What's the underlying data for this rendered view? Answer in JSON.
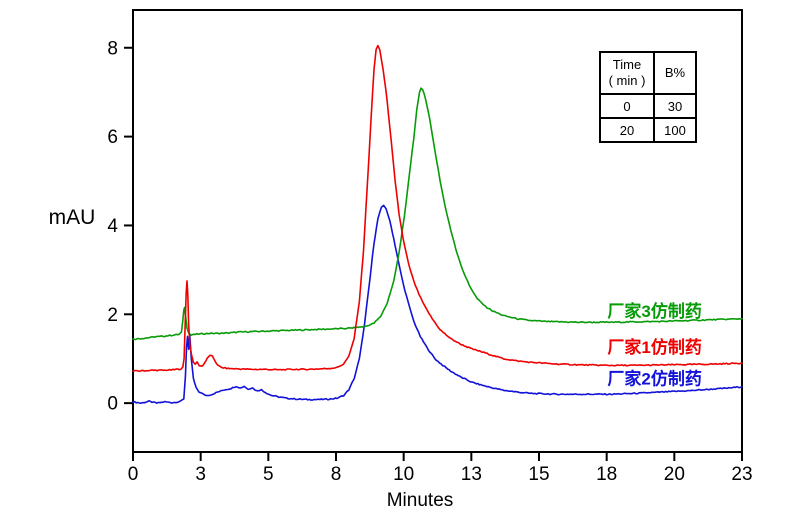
{
  "axis_labels": {
    "y": "mAU",
    "x": "Minutes"
  },
  "inset_table": {
    "header": {
      "time": "Time",
      "time_unit": "( min )",
      "b": "B%"
    },
    "rows": [
      [
        "0",
        "30"
      ],
      [
        "20",
        "100"
      ]
    ]
  },
  "chart_data": {
    "type": "line",
    "title": "",
    "xlabel": "Minutes",
    "ylabel": "mAU",
    "x_range": [
      0,
      23
    ],
    "y_range": [
      -1.1,
      8.85
    ],
    "grid": false,
    "legend_position": "inline-right-labels",
    "x_ticks": {
      "positions": [
        0,
        2.556,
        5.111,
        7.667,
        10.222,
        12.778,
        15.333,
        17.889,
        20.444,
        23
      ],
      "labels": [
        "0",
        "3",
        "5",
        "8",
        "10",
        "13",
        "15",
        "18",
        "20",
        "23"
      ]
    },
    "y_ticks": {
      "positions": [
        0,
        2,
        4,
        6,
        8
      ],
      "labels": [
        "0",
        "2",
        "4",
        "6",
        "8"
      ]
    },
    "series": [
      {
        "name": "厂家2仿制药",
        "color": "#1212d8",
        "peak": {
          "retention_min": 9.47,
          "height_mau": 4.45
        },
        "points": [
          [
            0,
            0.03
          ],
          [
            0.3,
            0.0
          ],
          [
            0.6,
            0.04
          ],
          [
            0.9,
            0.0
          ],
          [
            1.2,
            0.03
          ],
          [
            1.5,
            0.01
          ],
          [
            1.8,
            0.04
          ],
          [
            1.92,
            0.1
          ],
          [
            1.98,
            0.6
          ],
          [
            2.02,
            1.25
          ],
          [
            2.06,
            1.5
          ],
          [
            2.1,
            1.2
          ],
          [
            2.14,
            1.55
          ],
          [
            2.2,
            1.0
          ],
          [
            2.28,
            0.55
          ],
          [
            2.38,
            0.35
          ],
          [
            2.5,
            0.25
          ],
          [
            2.65,
            0.2
          ],
          [
            2.8,
            0.17
          ],
          [
            3.0,
            0.2
          ],
          [
            3.2,
            0.25
          ],
          [
            3.45,
            0.3
          ],
          [
            3.7,
            0.33
          ],
          [
            3.9,
            0.38
          ],
          [
            4.05,
            0.34
          ],
          [
            4.2,
            0.38
          ],
          [
            4.35,
            0.31
          ],
          [
            4.5,
            0.35
          ],
          [
            4.65,
            0.28
          ],
          [
            4.85,
            0.3
          ],
          [
            5.0,
            0.24
          ],
          [
            5.2,
            0.18
          ],
          [
            5.5,
            0.14
          ],
          [
            5.8,
            0.11
          ],
          [
            6.2,
            0.09
          ],
          [
            6.6,
            0.08
          ],
          [
            7.0,
            0.08
          ],
          [
            7.4,
            0.09
          ],
          [
            7.7,
            0.11
          ],
          [
            7.95,
            0.17
          ],
          [
            8.15,
            0.3
          ],
          [
            8.35,
            0.55
          ],
          [
            8.55,
            1.0
          ],
          [
            8.75,
            1.8
          ],
          [
            8.95,
            2.8
          ],
          [
            9.1,
            3.6
          ],
          [
            9.25,
            4.15
          ],
          [
            9.38,
            4.4
          ],
          [
            9.47,
            4.45
          ],
          [
            9.56,
            4.38
          ],
          [
            9.7,
            4.1
          ],
          [
            9.85,
            3.7
          ],
          [
            10.0,
            3.25
          ],
          [
            10.2,
            2.7
          ],
          [
            10.4,
            2.25
          ],
          [
            10.6,
            1.85
          ],
          [
            10.85,
            1.5
          ],
          [
            11.1,
            1.25
          ],
          [
            11.4,
            1.0
          ],
          [
            11.7,
            0.85
          ],
          [
            12.0,
            0.72
          ],
          [
            12.4,
            0.58
          ],
          [
            12.8,
            0.47
          ],
          [
            13.2,
            0.4
          ],
          [
            13.6,
            0.34
          ],
          [
            14.0,
            0.29
          ],
          [
            14.5,
            0.25
          ],
          [
            15.0,
            0.22
          ],
          [
            15.5,
            0.21
          ],
          [
            16.0,
            0.2
          ],
          [
            17.0,
            0.2
          ],
          [
            18.0,
            0.2
          ],
          [
            19.0,
            0.22
          ],
          [
            20.0,
            0.25
          ],
          [
            21.0,
            0.28
          ],
          [
            22.0,
            0.32
          ],
          [
            22.5,
            0.34
          ],
          [
            23,
            0.37
          ]
        ]
      },
      {
        "name": "厂家3仿制药",
        "color": "#089b08",
        "peak": {
          "retention_min": 10.88,
          "height_mau": 7.1
        },
        "points": [
          [
            0,
            1.44
          ],
          [
            0.4,
            1.46
          ],
          [
            0.8,
            1.49
          ],
          [
            1.2,
            1.51
          ],
          [
            1.5,
            1.53
          ],
          [
            1.75,
            1.55
          ],
          [
            1.83,
            1.6
          ],
          [
            1.88,
            1.85
          ],
          [
            1.92,
            2.1
          ],
          [
            1.95,
            2.15
          ],
          [
            1.99,
            1.95
          ],
          [
            2.04,
            1.7
          ],
          [
            2.1,
            1.58
          ],
          [
            2.2,
            1.53
          ],
          [
            2.35,
            1.55
          ],
          [
            2.6,
            1.56
          ],
          [
            2.9,
            1.57
          ],
          [
            3.2,
            1.57
          ],
          [
            3.6,
            1.58
          ],
          [
            4.0,
            1.6
          ],
          [
            4.5,
            1.61
          ],
          [
            5.0,
            1.62
          ],
          [
            5.5,
            1.63
          ],
          [
            6.0,
            1.64
          ],
          [
            6.5,
            1.65
          ],
          [
            7.0,
            1.66
          ],
          [
            7.5,
            1.67
          ],
          [
            8.0,
            1.68
          ],
          [
            8.4,
            1.7
          ],
          [
            8.8,
            1.73
          ],
          [
            9.1,
            1.8
          ],
          [
            9.35,
            1.95
          ],
          [
            9.6,
            2.25
          ],
          [
            9.85,
            2.75
          ],
          [
            10.05,
            3.4
          ],
          [
            10.25,
            4.2
          ],
          [
            10.45,
            5.2
          ],
          [
            10.6,
            5.95
          ],
          [
            10.72,
            6.6
          ],
          [
            10.82,
            7.0
          ],
          [
            10.88,
            7.1
          ],
          [
            10.95,
            7.05
          ],
          [
            11.05,
            6.85
          ],
          [
            11.2,
            6.4
          ],
          [
            11.4,
            5.7
          ],
          [
            11.6,
            5.0
          ],
          [
            11.8,
            4.4
          ],
          [
            12.0,
            3.9
          ],
          [
            12.2,
            3.45
          ],
          [
            12.45,
            3.0
          ],
          [
            12.7,
            2.65
          ],
          [
            13.0,
            2.35
          ],
          [
            13.3,
            2.18
          ],
          [
            13.6,
            2.07
          ],
          [
            14.0,
            1.97
          ],
          [
            14.5,
            1.9
          ],
          [
            15.0,
            1.86
          ],
          [
            15.5,
            1.84
          ],
          [
            16.0,
            1.83
          ],
          [
            17.0,
            1.82
          ],
          [
            18.0,
            1.82
          ],
          [
            19.0,
            1.83
          ],
          [
            20.0,
            1.84
          ],
          [
            21.0,
            1.86
          ],
          [
            22.0,
            1.88
          ],
          [
            23,
            1.9
          ]
        ]
      },
      {
        "name": "厂家1仿制药",
        "color": "#ee0000",
        "peak": {
          "retention_min": 9.25,
          "height_mau": 8.05
        },
        "points": [
          [
            0,
            0.72
          ],
          [
            0.4,
            0.73
          ],
          [
            0.8,
            0.74
          ],
          [
            1.2,
            0.74
          ],
          [
            1.5,
            0.75
          ],
          [
            1.8,
            0.77
          ],
          [
            1.88,
            0.8
          ],
          [
            1.93,
            1.0
          ],
          [
            1.97,
            1.8
          ],
          [
            2.01,
            2.5
          ],
          [
            2.04,
            2.75
          ],
          [
            2.07,
            2.45
          ],
          [
            2.1,
            1.8
          ],
          [
            2.15,
            1.3
          ],
          [
            2.22,
            1.05
          ],
          [
            2.28,
            0.92
          ],
          [
            2.35,
            0.88
          ],
          [
            2.42,
            0.92
          ],
          [
            2.5,
            0.85
          ],
          [
            2.6,
            0.83
          ],
          [
            2.7,
            0.9
          ],
          [
            2.8,
            1.0
          ],
          [
            2.9,
            1.08
          ],
          [
            3.0,
            1.05
          ],
          [
            3.1,
            0.95
          ],
          [
            3.2,
            0.85
          ],
          [
            3.35,
            0.8
          ],
          [
            3.6,
            0.78
          ],
          [
            4.0,
            0.77
          ],
          [
            4.5,
            0.76
          ],
          [
            5.0,
            0.76
          ],
          [
            5.5,
            0.75
          ],
          [
            6.0,
            0.76
          ],
          [
            6.5,
            0.76
          ],
          [
            7.0,
            0.77
          ],
          [
            7.4,
            0.78
          ],
          [
            7.7,
            0.8
          ],
          [
            7.95,
            0.88
          ],
          [
            8.15,
            1.05
          ],
          [
            8.35,
            1.45
          ],
          [
            8.55,
            2.3
          ],
          [
            8.7,
            3.4
          ],
          [
            8.85,
            4.9
          ],
          [
            9.0,
            6.5
          ],
          [
            9.1,
            7.5
          ],
          [
            9.18,
            7.95
          ],
          [
            9.25,
            8.05
          ],
          [
            9.32,
            7.95
          ],
          [
            9.45,
            7.5
          ],
          [
            9.6,
            6.8
          ],
          [
            9.75,
            5.9
          ],
          [
            9.9,
            5.0
          ],
          [
            10.05,
            4.25
          ],
          [
            10.2,
            3.7
          ],
          [
            10.4,
            3.15
          ],
          [
            10.6,
            2.75
          ],
          [
            10.8,
            2.45
          ],
          [
            11.0,
            2.2
          ],
          [
            11.3,
            1.9
          ],
          [
            11.6,
            1.65
          ],
          [
            12.0,
            1.45
          ],
          [
            12.4,
            1.32
          ],
          [
            12.8,
            1.22
          ],
          [
            13.2,
            1.15
          ],
          [
            13.6,
            1.07
          ],
          [
            14.0,
            1.0
          ],
          [
            14.5,
            0.95
          ],
          [
            15.0,
            0.92
          ],
          [
            15.5,
            0.9
          ],
          [
            16.0,
            0.88
          ],
          [
            16.5,
            0.87
          ],
          [
            17.0,
            0.86
          ],
          [
            18.0,
            0.85
          ],
          [
            19.0,
            0.85
          ],
          [
            20.0,
            0.86
          ],
          [
            21.0,
            0.87
          ],
          [
            22.0,
            0.88
          ],
          [
            23,
            0.9
          ]
        ]
      }
    ],
    "annotations": [
      {
        "text": "厂家3仿制药",
        "color": "#089b08",
        "x": 19.7,
        "y": 2.07
      },
      {
        "text": "厂家1仿制药",
        "color": "#ee0000",
        "x": 19.7,
        "y": 1.26
      },
      {
        "text": "厂家2仿制药",
        "color": "#1212d8",
        "x": 19.7,
        "y": 0.56
      }
    ]
  }
}
